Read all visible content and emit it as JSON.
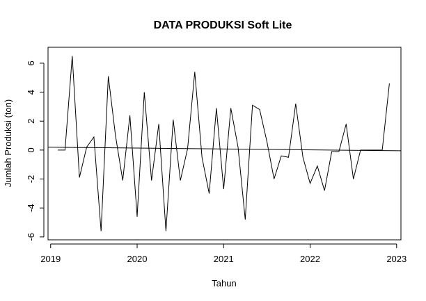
{
  "chart_data": {
    "type": "line",
    "title": "DATA PRODUKSI Soft Lite",
    "xlabel": "Tahun",
    "ylabel": "Jumlah Produksi (ton)",
    "xlim": [
      2018.97,
      2023.05
    ],
    "ylim": [
      -6.2,
      7.1
    ],
    "x_ticks": [
      2019,
      2020,
      2021,
      2022,
      2023
    ],
    "x_tick_labels": [
      "2019",
      "2020",
      "2021",
      "2022",
      "2023"
    ],
    "y_ticks": [
      -6,
      -4,
      -2,
      0,
      2,
      4,
      6
    ],
    "y_tick_labels": [
      "-6",
      "-4",
      "-2",
      "0",
      "2",
      "4",
      "6"
    ],
    "grid": false,
    "series": [
      {
        "x": [
          2019.0833,
          2019.1667,
          2019.25,
          2019.3333,
          2019.4167,
          2019.5,
          2019.5833,
          2019.6667,
          2019.75,
          2019.8333,
          2019.9167,
          2020.0,
          2020.0833,
          2020.1667,
          2020.25,
          2020.3333,
          2020.4167,
          2020.5,
          2020.5833,
          2020.6667,
          2020.75,
          2020.8333,
          2020.9167,
          2021.0,
          2021.0833,
          2021.1667,
          2021.25,
          2021.3333,
          2021.4167,
          2021.5,
          2021.5833,
          2021.6667,
          2021.75,
          2021.8333,
          2021.9167,
          2022.0,
          2022.0833,
          2022.1667,
          2022.25,
          2022.3333,
          2022.4167,
          2022.5,
          2022.5833,
          2022.6667,
          2022.75,
          2022.8333,
          2022.9167
        ],
        "values": [
          0.0,
          0.0,
          6.5,
          -1.9,
          0.2,
          0.9,
          -5.6,
          5.1,
          1.0,
          -2.1,
          2.4,
          -4.6,
          4.0,
          -2.1,
          1.8,
          -5.6,
          2.1,
          -2.1,
          0.1,
          5.4,
          -0.5,
          -3.0,
          2.9,
          -2.7,
          2.9,
          0.2,
          -4.8,
          3.1,
          2.8,
          0.6,
          -2.0,
          -0.4,
          -0.5,
          3.2,
          -0.5,
          -2.3,
          -1.1,
          -2.8,
          -0.1,
          -0.1,
          1.8,
          -2.0,
          0.0,
          0.0,
          0.0,
          0.0,
          4.6
        ]
      }
    ],
    "reference_line": {
      "type": "regression",
      "intercept_at_xmin": 0.2,
      "value_at_xmax": -0.05
    }
  }
}
